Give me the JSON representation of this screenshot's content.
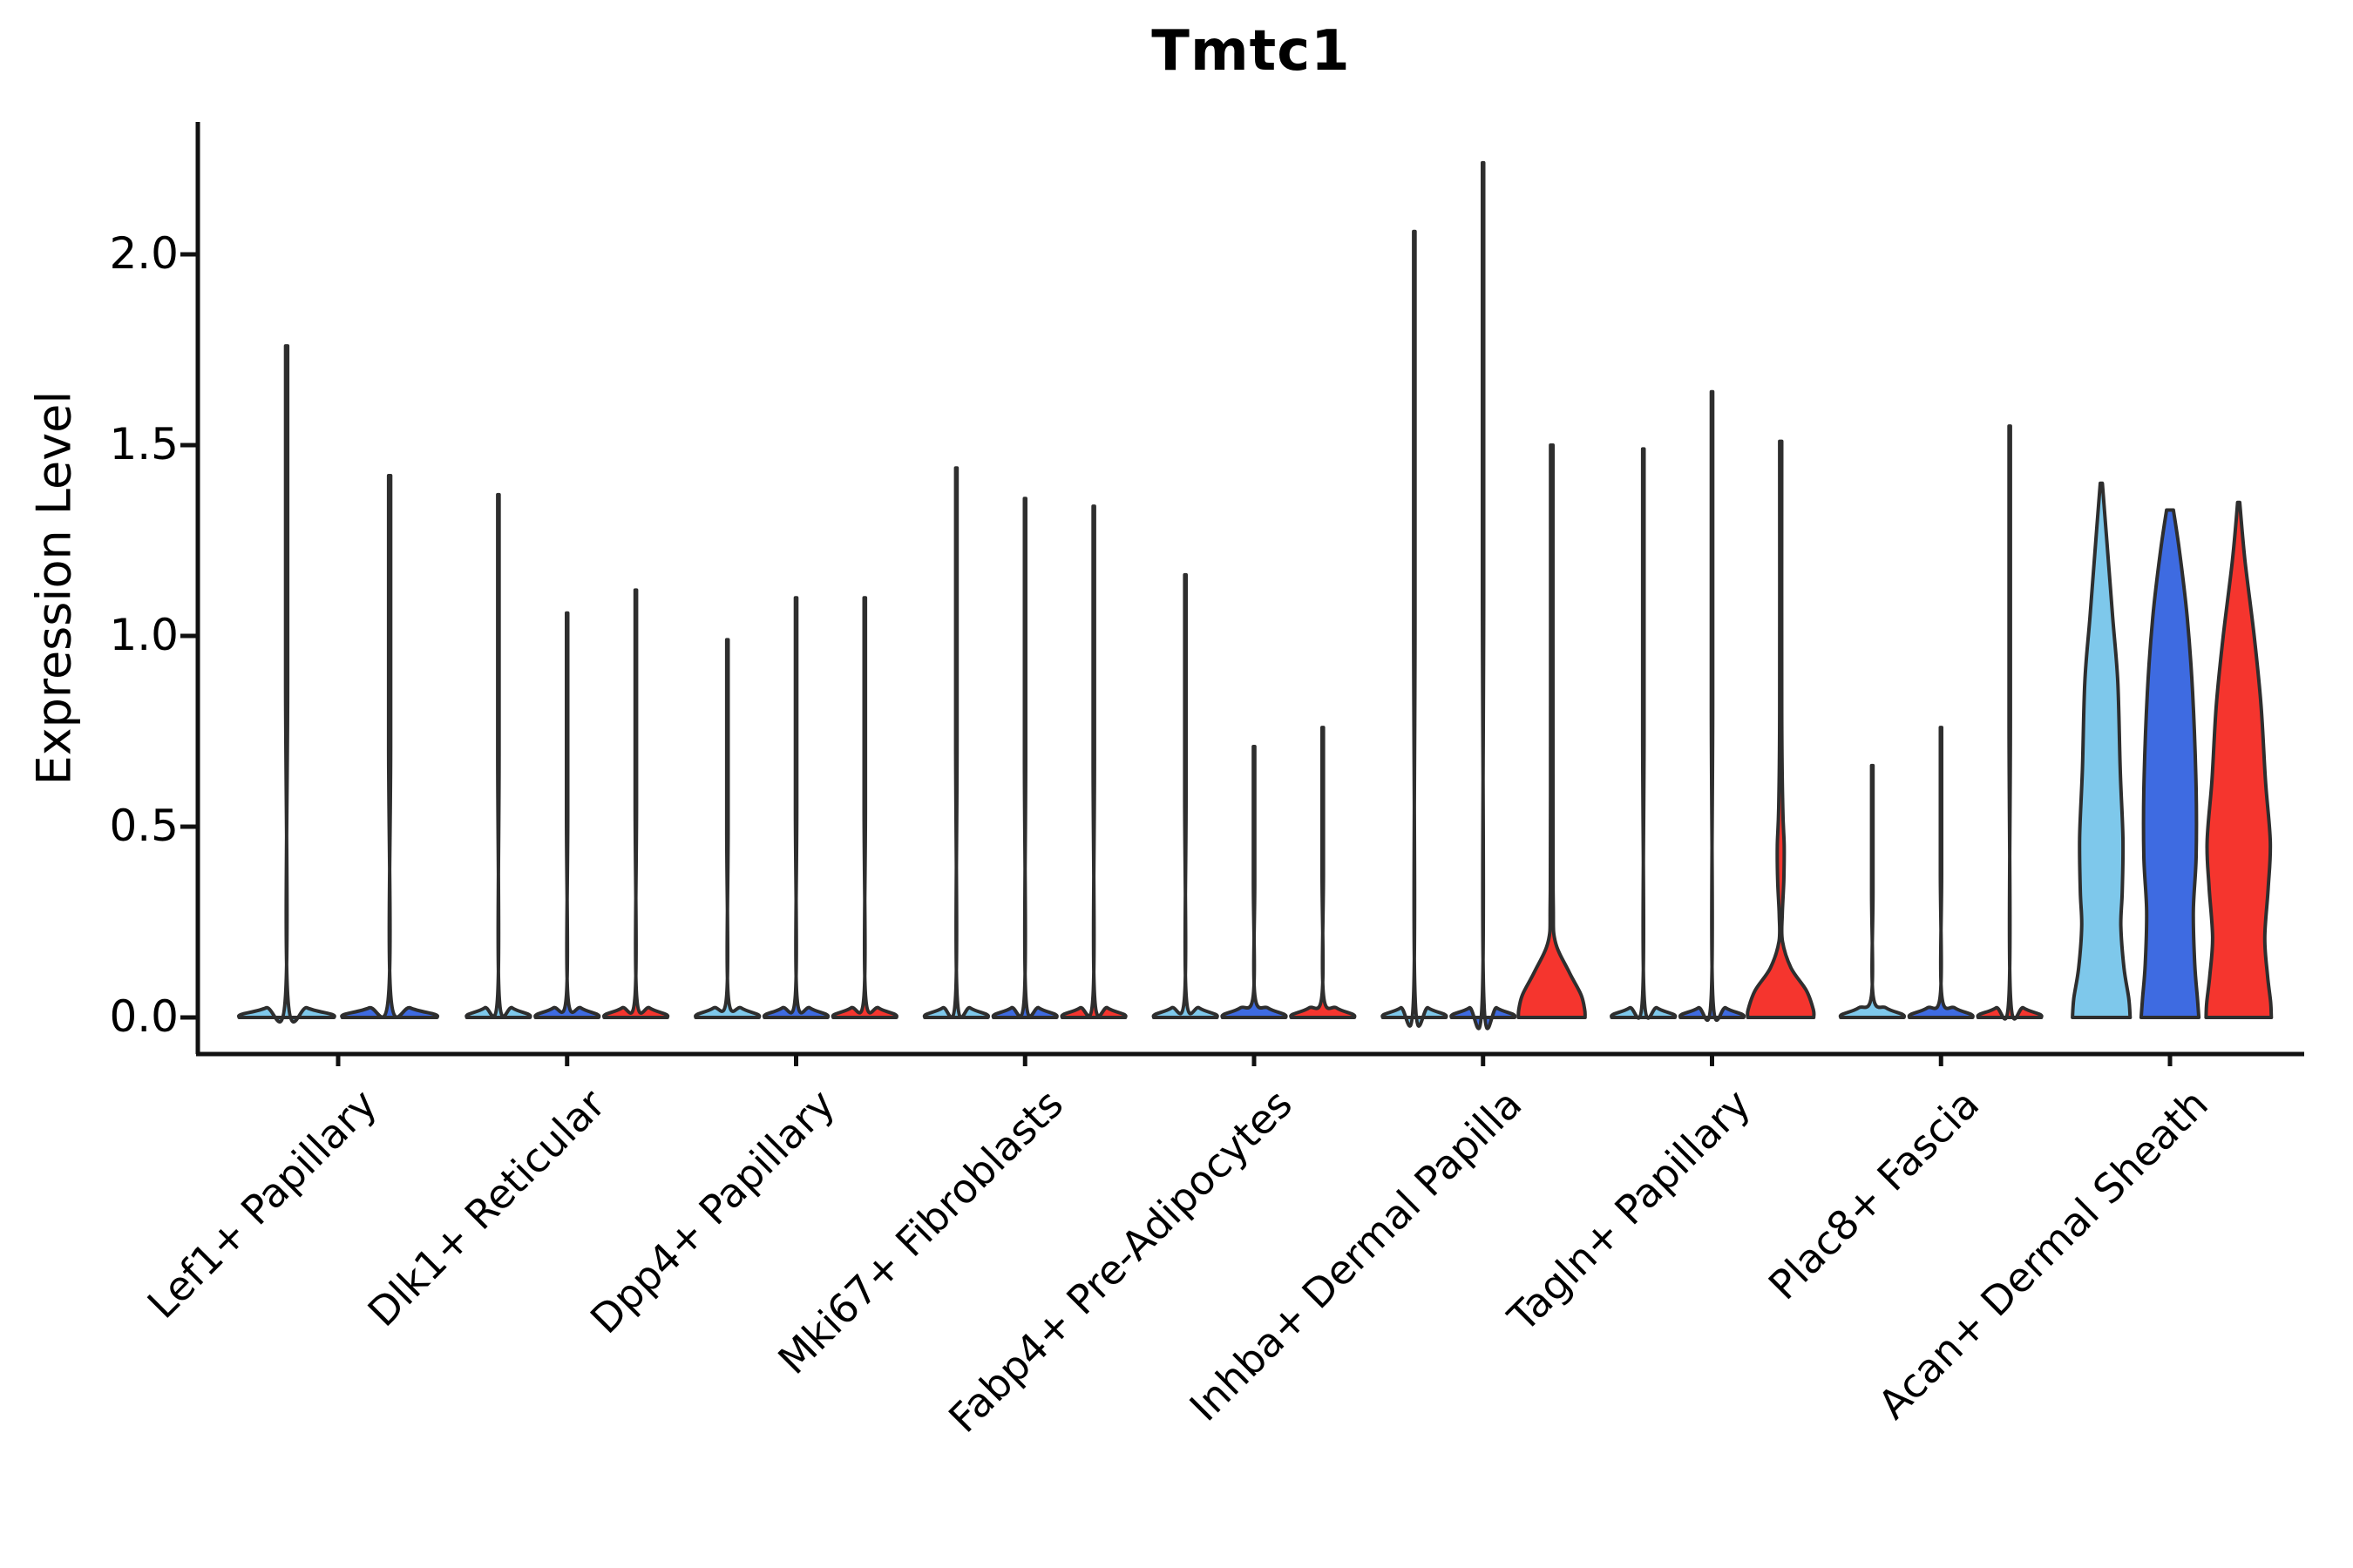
{
  "title": "Tmtc1",
  "y_axis": {
    "label": "Expression Level",
    "ticks": [
      "0.0",
      "0.5",
      "1.0",
      "1.5",
      "2.0"
    ],
    "tick_values": [
      0.0,
      0.5,
      1.0,
      1.5,
      2.0
    ]
  },
  "x_axis": {
    "categories": [
      "Lef1+ Papillary",
      "Dlk1+ Reticular",
      "Dpp4+ Papillary",
      "Mki67+ Fibroblasts",
      "Fabp4+ Pre-Adipocytes",
      "Inhba+ Dermal Papilla",
      "Tagln+ Papillary",
      "Plac8+ Fascia",
      "Acan+ Dermal Sheath"
    ]
  },
  "colors": {
    "light_blue": "#7EC8EB",
    "blue": "#3E6BE1",
    "red": "#F5352E",
    "outline": "#2E2E2E",
    "axis": "#111111"
  },
  "chart_data": {
    "type": "violin",
    "title": "Tmtc1",
    "xlabel": "",
    "ylabel": "Expression Level",
    "ylim": [
      0,
      2.3
    ],
    "grid": false,
    "legend": "none",
    "categories": [
      "Lef1+ Papillary",
      "Dlk1+ Reticular",
      "Dpp4+ Papillary",
      "Mki67+ Fibroblasts",
      "Fabp4+ Pre-Adipocytes",
      "Inhba+ Dermal Papilla",
      "Tagln+ Papillary",
      "Plac8+ Fascia",
      "Acan+ Dermal Sheath"
    ],
    "groups": [
      {
        "category": "Lef1+ Papillary",
        "violins": [
          {
            "split": "light_blue",
            "fill": "#7EC8EB",
            "max": 1.76,
            "shape": "spike"
          },
          {
            "split": "blue",
            "fill": "#3E6BE1",
            "max": 1.42,
            "shape": "spike"
          }
        ]
      },
      {
        "category": "Dlk1+ Reticular",
        "violins": [
          {
            "split": "light_blue",
            "fill": "#7EC8EB",
            "max": 1.37,
            "shape": "spike"
          },
          {
            "split": "blue",
            "fill": "#3E6BE1",
            "max": 1.06,
            "shape": "spike"
          },
          {
            "split": "red",
            "fill": "#F5352E",
            "max": 1.12,
            "shape": "spike"
          }
        ]
      },
      {
        "category": "Dpp4+ Papillary",
        "violins": [
          {
            "split": "light_blue",
            "fill": "#7EC8EB",
            "max": 0.99,
            "shape": "spike"
          },
          {
            "split": "blue",
            "fill": "#3E6BE1",
            "max": 1.1,
            "shape": "spike"
          },
          {
            "split": "red",
            "fill": "#F5352E",
            "max": 1.1,
            "shape": "spike"
          }
        ]
      },
      {
        "category": "Mki67+ Fibroblasts",
        "violins": [
          {
            "split": "light_blue",
            "fill": "#7EC8EB",
            "max": 1.44,
            "shape": "spike"
          },
          {
            "split": "blue",
            "fill": "#3E6BE1",
            "max": 1.36,
            "shape": "spike"
          },
          {
            "split": "red",
            "fill": "#F5352E",
            "max": 1.34,
            "shape": "spike"
          }
        ]
      },
      {
        "category": "Fabp4+ Pre-Adipocytes",
        "violins": [
          {
            "split": "light_blue",
            "fill": "#7EC8EB",
            "max": 1.16,
            "shape": "spike"
          },
          {
            "split": "blue",
            "fill": "#3E6BE1",
            "max": 0.71,
            "shape": "spike"
          },
          {
            "split": "red",
            "fill": "#F5352E",
            "max": 0.76,
            "shape": "spike"
          }
        ]
      },
      {
        "category": "Inhba+ Dermal Papilla",
        "violins": [
          {
            "split": "light_blue",
            "fill": "#7EC8EB",
            "max": 2.06,
            "shape": "spike"
          },
          {
            "split": "blue",
            "fill": "#3E6BE1",
            "max": 2.24,
            "shape": "spike"
          },
          {
            "split": "red",
            "fill": "#F5352E",
            "max": 1.5,
            "shape": "kde",
            "profile": [
              [
                1.5,
                0.035
              ],
              [
                0.6,
                0.035
              ],
              [
                0.3,
                0.045
              ],
              [
                0.2,
                0.1
              ],
              [
                0.12,
                0.5
              ],
              [
                0.06,
                0.85
              ],
              [
                0.02,
                0.96
              ],
              [
                0.0,
                0.97
              ]
            ]
          }
        ]
      },
      {
        "category": "Tagln+ Papillary",
        "violins": [
          {
            "split": "light_blue",
            "fill": "#7EC8EB",
            "max": 1.49,
            "shape": "spike"
          },
          {
            "split": "blue",
            "fill": "#3E6BE1",
            "max": 1.64,
            "shape": "spike"
          },
          {
            "split": "red",
            "fill": "#F5352E",
            "max": 1.51,
            "shape": "kde",
            "profile": [
              [
                1.51,
                0.03
              ],
              [
                0.8,
                0.03
              ],
              [
                0.55,
                0.06
              ],
              [
                0.45,
                0.1
              ],
              [
                0.36,
                0.09
              ],
              [
                0.27,
                0.045
              ],
              [
                0.2,
                0.05
              ],
              [
                0.13,
                0.3
              ],
              [
                0.07,
                0.75
              ],
              [
                0.02,
                0.95
              ],
              [
                0.0,
                0.96
              ]
            ]
          }
        ]
      },
      {
        "category": "Plac8+ Fascia",
        "violins": [
          {
            "split": "light_blue",
            "fill": "#7EC8EB",
            "max": 0.66,
            "shape": "spike"
          },
          {
            "split": "blue",
            "fill": "#3E6BE1",
            "max": 0.76,
            "shape": "spike"
          },
          {
            "split": "red",
            "fill": "#F5352E",
            "max": 1.55,
            "shape": "spike"
          }
        ]
      },
      {
        "category": "Acan+ Dermal Sheath",
        "violins": [
          {
            "split": "light_blue",
            "fill": "#7EC8EB",
            "max": 1.4,
            "shape": "kde",
            "profile": [
              [
                1.4,
                0.03
              ],
              [
                1.25,
                0.16
              ],
              [
                1.05,
                0.33
              ],
              [
                0.88,
                0.48
              ],
              [
                0.65,
                0.55
              ],
              [
                0.47,
                0.63
              ],
              [
                0.33,
                0.61
              ],
              [
                0.24,
                0.57
              ],
              [
                0.13,
                0.66
              ],
              [
                0.05,
                0.8
              ],
              [
                0.0,
                0.84
              ]
            ]
          },
          {
            "split": "blue",
            "fill": "#3E6BE1",
            "max": 1.33,
            "shape": "kde",
            "profile": [
              [
                1.33,
                0.1
              ],
              [
                1.22,
                0.28
              ],
              [
                1.05,
                0.5
              ],
              [
                0.85,
                0.66
              ],
              [
                0.6,
                0.76
              ],
              [
                0.42,
                0.76
              ],
              [
                0.28,
                0.68
              ],
              [
                0.14,
                0.72
              ],
              [
                0.05,
                0.8
              ],
              [
                0.0,
                0.84
              ]
            ]
          },
          {
            "split": "red",
            "fill": "#F5352E",
            "max": 1.35,
            "shape": "kde",
            "profile": [
              [
                1.35,
                0.03
              ],
              [
                1.2,
                0.18
              ],
              [
                1.0,
                0.45
              ],
              [
                0.82,
                0.65
              ],
              [
                0.62,
                0.78
              ],
              [
                0.46,
                0.92
              ],
              [
                0.34,
                0.86
              ],
              [
                0.21,
                0.76
              ],
              [
                0.11,
                0.84
              ],
              [
                0.04,
                0.93
              ],
              [
                0.0,
                0.95
              ]
            ]
          }
        ]
      }
    ]
  }
}
